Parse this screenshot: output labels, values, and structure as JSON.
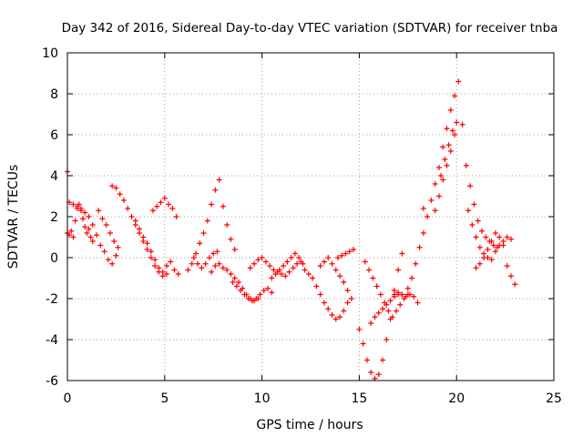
{
  "chart_data": {
    "type": "scatter",
    "title": "Day 342 of 2016, Sidereal Day-to-day VTEC variation (SDTVAR) for receiver tnba",
    "xlabel": "GPS time / hours",
    "ylabel": "SDTVAR / TECUs",
    "xlim": [
      0,
      25
    ],
    "ylim": [
      -6,
      10
    ],
    "xticks": [
      0,
      5,
      10,
      15,
      20,
      25
    ],
    "yticks": [
      -6,
      -4,
      -2,
      0,
      2,
      4,
      6,
      8,
      10
    ],
    "grid": true,
    "marker": "+",
    "color": "#ff0000",
    "series": [
      {
        "name": "SDTVAR",
        "x": [
          0.0,
          0.1,
          0.2,
          0.3,
          0.4,
          0.5,
          0.6,
          0.7,
          0.8,
          0.9,
          1.0,
          1.1,
          1.2,
          1.3,
          0.1,
          0.3,
          0.5,
          0.7,
          0.9,
          1.1,
          1.3,
          1.5,
          1.7,
          1.9,
          2.1,
          2.3,
          2.5,
          1.6,
          1.8,
          2.0,
          2.2,
          2.4,
          2.6,
          2.3,
          2.5,
          2.7,
          2.9,
          3.1,
          3.3,
          3.5,
          3.7,
          3.9,
          4.1,
          4.3,
          4.5,
          4.7,
          4.9,
          5.1,
          3.5,
          3.7,
          3.9,
          4.1,
          4.3,
          4.5,
          4.7,
          4.9,
          5.1,
          5.3,
          5.5,
          5.7,
          4.4,
          4.6,
          4.8,
          5.0,
          5.2,
          5.4,
          5.6,
          6.2,
          6.4,
          6.6,
          6.8,
          7.0,
          7.2,
          7.4,
          7.6,
          7.8,
          8.0,
          8.2,
          8.4,
          8.6,
          6.5,
          6.7,
          6.9,
          7.1,
          7.3,
          7.5,
          7.7,
          7.4,
          7.6,
          7.8,
          8.0,
          8.2,
          8.4,
          8.6,
          8.8,
          9.0,
          9.2,
          9.4,
          9.6,
          9.8,
          8.5,
          8.7,
          8.9,
          9.1,
          9.3,
          9.5,
          9.7,
          9.9,
          10.1,
          10.3,
          10.5,
          9.4,
          9.6,
          9.8,
          10.0,
          10.2,
          10.4,
          10.6,
          10.8,
          11.0,
          11.2,
          11.4,
          11.6,
          11.8,
          12.0,
          10.5,
          10.7,
          10.9,
          11.1,
          11.3,
          11.5,
          11.7,
          11.9,
          12.1,
          12.2,
          12.4,
          12.6,
          12.8,
          13.0,
          13.2,
          13.4,
          13.6,
          13.8,
          14.0,
          14.2,
          14.4,
          13.0,
          13.2,
          13.4,
          13.6,
          13.8,
          14.0,
          14.2,
          14.4,
          14.6,
          13.9,
          14.1,
          14.3,
          14.5,
          14.7,
          15.0,
          15.2,
          15.4,
          15.6,
          15.8,
          16.0,
          16.2,
          16.4,
          16.6,
          16.8,
          17.0,
          17.2,
          15.6,
          15.8,
          16.0,
          16.2,
          16.4,
          16.6,
          16.8,
          17.0,
          17.2,
          15.3,
          15.5,
          15.7,
          15.9,
          16.1,
          16.3,
          16.5,
          16.7,
          16.9,
          17.1,
          17.3,
          17.5,
          16.8,
          17.0,
          17.2,
          17.4,
          17.6,
          17.8,
          18.0,
          17.5,
          17.7,
          17.9,
          18.1,
          18.3,
          18.5,
          18.7,
          18.9,
          19.1,
          19.3,
          19.5,
          19.7,
          19.9,
          20.1,
          18.9,
          19.1,
          19.3,
          19.5,
          19.7,
          19.9,
          19.2,
          19.4,
          19.6,
          19.8,
          20.0,
          20.3,
          20.5,
          20.7,
          20.9,
          21.1,
          21.3,
          21.5,
          21.7,
          21.9,
          22.1,
          20.6,
          20.8,
          21.0,
          21.2,
          21.4,
          21.6,
          21.8,
          22.0,
          22.2,
          22.4,
          22.6,
          22.8,
          21.0,
          21.2,
          21.4,
          21.6,
          21.8,
          22.0,
          22.2,
          22.4,
          22.6,
          22.8,
          23.0,
          0.0,
          18.3
        ],
        "y": [
          1.2,
          1.1,
          1.3,
          1.0,
          1.8,
          2.4,
          2.6,
          2.3,
          1.9,
          1.5,
          1.2,
          1.4,
          1.0,
          0.8,
          2.7,
          2.6,
          2.5,
          2.4,
          2.2,
          2.0,
          1.6,
          1.1,
          0.6,
          0.3,
          -0.1,
          -0.3,
          0.1,
          2.3,
          1.9,
          1.6,
          1.2,
          0.8,
          0.5,
          3.5,
          3.4,
          3.1,
          2.8,
          2.4,
          2.0,
          1.6,
          1.2,
          0.8,
          0.4,
          0.0,
          -0.4,
          -0.7,
          -0.9,
          -0.8,
          1.8,
          1.4,
          1.0,
          0.7,
          0.3,
          -0.1,
          -0.5,
          -0.7,
          -0.4,
          -0.2,
          -0.6,
          -0.8,
          2.3,
          2.5,
          2.7,
          2.9,
          2.6,
          2.4,
          2.0,
          -0.6,
          -0.3,
          0.2,
          0.7,
          1.2,
          1.8,
          2.6,
          3.3,
          3.8,
          2.5,
          1.6,
          0.9,
          0.4,
          0.0,
          -0.3,
          -0.5,
          -0.3,
          0.0,
          0.2,
          0.3,
          -0.7,
          -0.4,
          -0.3,
          -0.5,
          -0.6,
          -0.8,
          -1.0,
          -1.2,
          -1.5,
          -1.8,
          -2.0,
          -2.1,
          -2.0,
          -1.2,
          -1.4,
          -1.6,
          -1.8,
          -2.0,
          -2.1,
          -2.0,
          -1.8,
          -1.6,
          -1.5,
          -1.7,
          -0.5,
          -0.3,
          -0.1,
          0.0,
          -0.2,
          -0.4,
          -0.6,
          -0.7,
          -0.8,
          -0.9,
          -0.7,
          -0.5,
          -0.3,
          -0.2,
          -1.0,
          -0.8,
          -0.6,
          -0.4,
          -0.2,
          0.0,
          0.2,
          0.0,
          -0.3,
          -0.6,
          -0.8,
          -1.0,
          -1.4,
          -1.8,
          -2.2,
          -2.5,
          -2.8,
          -3.0,
          -2.9,
          -2.6,
          -2.2,
          -0.4,
          -0.2,
          0.0,
          -0.3,
          -0.6,
          -0.9,
          -1.2,
          -1.6,
          -2.0,
          0.0,
          0.1,
          0.2,
          0.3,
          0.4,
          -3.5,
          -4.2,
          -5.0,
          -5.6,
          -5.9,
          -5.7,
          -5.0,
          -4.0,
          -3.0,
          -1.8,
          -0.6,
          0.2,
          -3.2,
          -2.9,
          -2.7,
          -2.5,
          -2.3,
          -2.1,
          -1.9,
          -1.8,
          -1.8,
          -0.2,
          -0.6,
          -1.0,
          -1.4,
          -1.8,
          -2.2,
          -2.6,
          -2.9,
          -2.6,
          -2.3,
          -2.0,
          -1.8,
          -1.6,
          -1.7,
          -1.8,
          -1.9,
          -1.8,
          -1.9,
          -2.2,
          -1.5,
          -1.0,
          -0.3,
          0.5,
          1.2,
          2.0,
          2.8,
          3.6,
          4.4,
          5.4,
          6.3,
          7.2,
          7.9,
          8.6,
          2.3,
          3.0,
          3.8,
          4.5,
          5.2,
          6.0,
          4.0,
          4.8,
          5.5,
          6.2,
          6.6,
          6.5,
          4.5,
          3.5,
          2.6,
          1.8,
          1.3,
          1.0,
          0.8,
          0.6,
          0.5,
          2.3,
          1.6,
          1.0,
          0.5,
          0.2,
          0.0,
          -0.1,
          0.3,
          0.6,
          0.8,
          1.0,
          0.9,
          -0.5,
          -0.3,
          0.0,
          0.4,
          0.8,
          1.2,
          1.0,
          0.6,
          -0.4,
          -0.9,
          -1.3,
          4.2,
          2.4
        ]
      }
    ]
  }
}
